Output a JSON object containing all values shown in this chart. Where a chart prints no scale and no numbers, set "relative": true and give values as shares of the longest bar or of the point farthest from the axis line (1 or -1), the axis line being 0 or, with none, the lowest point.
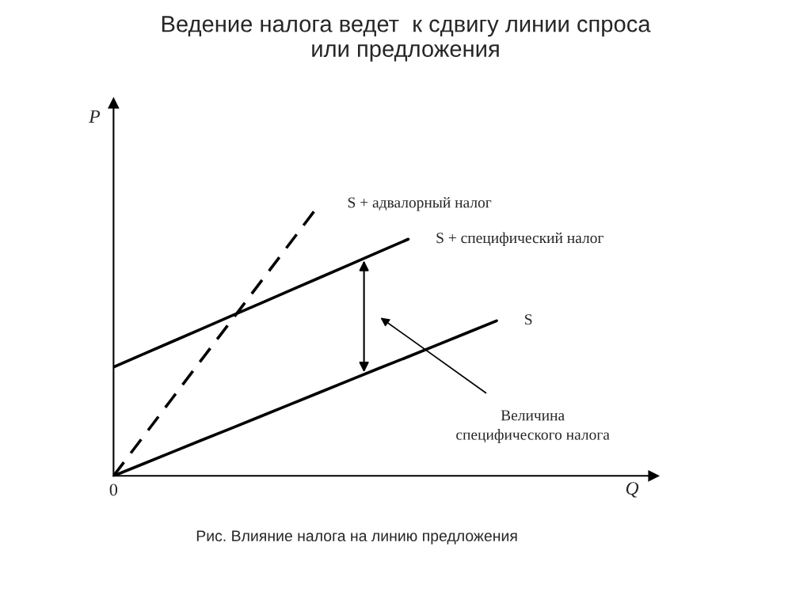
{
  "chart_data": {
    "type": "line",
    "relative": true,
    "title": "Ведение налога ведет  к сдвигу линии спроса\nили предложения",
    "ylabel": "P",
    "categories": [
      null,
      null,
      null,
      null,
      null,
      null,
      null,
      null,
      null,
      null,
      null,
      null,
      null,
      null
    ],
    "series": [
      {
        "name": "S + адвалорный налог",
        "color": "#000000",
        "line_style": "dashed",
        "values": [
          0,
          0.143,
          0.286,
          0.429,
          0.571,
          0.714,
          0.857,
          1,
          null,
          null,
          null,
          null,
          null,
          null
        ]
      },
      {
        "name": "S + специфический налог",
        "color": "#000000",
        "line_style": "solid",
        "values": [
          0.4,
          0.447,
          0.494,
          0.541,
          0.588,
          0.635,
          0.682,
          0.729,
          0.776,
          0.823,
          0.87,
          null,
          null,
          null
        ]
      },
      {
        "name": "S",
        "color": "#000000",
        "line_style": "solid",
        "values": [
          0,
          0.044,
          0.088,
          0.132,
          0.175,
          0.219,
          0.263,
          0.307,
          0.351,
          0.395,
          0.438,
          0.482,
          0.526,
          0.57
        ]
      }
    ],
    "annotations": [
      "0",
      "Величина\nспецифического налога",
      "Рис. Влияние налога на линию предложения",
      "Q"
    ]
  }
}
